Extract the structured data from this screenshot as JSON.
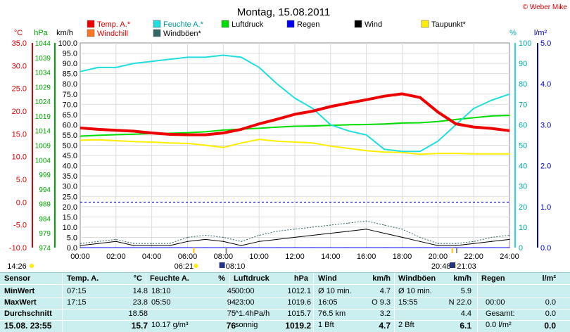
{
  "page": {
    "title": "Montag, 15.08.2011",
    "copyright": "© Weber Mike",
    "colors": {
      "temp": "#ee0000",
      "windchill": "#ff7722",
      "humidity": "#22dddd",
      "pressure": "#00dd00",
      "rain": "#0000ee",
      "wind": "#000000",
      "dewpoint": "#ffee00",
      "gusts": "#336666",
      "table_bg": "#cbeeee"
    }
  },
  "axes": {
    "temp_unit": "°C",
    "pressure_unit": "hPa",
    "wind_unit": "km/h",
    "humidity_unit": "%",
    "rain_unit": "l/m²",
    "temp_ticks": [
      "35.0",
      "30.0",
      "25.0",
      "20.0",
      "15.0",
      "10.0",
      "5.0",
      "0.0",
      "-5.0",
      "-10.0"
    ],
    "pressure_ticks": [
      "1044",
      "1039",
      "1034",
      "1029",
      "1024",
      "1019",
      "1014",
      "1009",
      "1004",
      "999",
      "994",
      "989",
      "984",
      "979",
      "974"
    ],
    "wind_ticks": [
      "100.0",
      "95.0",
      "90.0",
      "85.0",
      "80.0",
      "75.0",
      "70.0",
      "65.0",
      "60.0",
      "55.0",
      "50.0",
      "45.0",
      "40.0",
      "35.0",
      "30.0",
      "25.0",
      "20.0",
      "15.0",
      "10.0",
      "5.0",
      "0.0"
    ],
    "humidity_ticks": [
      "100",
      "90",
      "80",
      "70",
      "60",
      "50",
      "40",
      "30",
      "20",
      "10",
      "0"
    ],
    "rain_ticks": [
      "5.0",
      "4.0",
      "3.0",
      "2.0",
      "1.0",
      "0.0"
    ],
    "x_ticks": [
      "00:00",
      "02:00",
      "04:00",
      "06:00",
      "08:00",
      "10:00",
      "12:00",
      "14:00",
      "16:00",
      "18:00",
      "20:00",
      "22:00",
      "24:00"
    ]
  },
  "sun": {
    "sunrise": "06:21",
    "sunset": "20:48",
    "moonrise": "08:10",
    "moonset": "21:03",
    "left_time": "14:26"
  },
  "chart_data": {
    "type": "line",
    "x": [
      "00:00",
      "01:00",
      "02:00",
      "03:00",
      "04:00",
      "05:00",
      "06:00",
      "07:00",
      "08:00",
      "09:00",
      "10:00",
      "11:00",
      "12:00",
      "13:00",
      "14:00",
      "15:00",
      "16:00",
      "17:00",
      "18:00",
      "19:00",
      "20:00",
      "21:00",
      "22:00",
      "23:00",
      "24:00"
    ],
    "series": [
      {
        "name": "Temp. A.*",
        "color": "#ee0000",
        "axis": "temp",
        "values": [
          16.3,
          16.0,
          15.8,
          15.6,
          15.2,
          14.9,
          14.8,
          14.8,
          15.2,
          16.0,
          17.2,
          18.2,
          19.3,
          20.0,
          21.0,
          21.8,
          22.5,
          23.3,
          23.8,
          23.0,
          19.8,
          17.2,
          16.5,
          16.2,
          15.7
        ]
      },
      {
        "name": "Windchill",
        "color": "#ff7722",
        "axis": "temp",
        "values": [
          16.3,
          16.0,
          15.8,
          15.6,
          15.2,
          14.9,
          14.8,
          14.8,
          15.2,
          16.0,
          17.2,
          18.2,
          19.3,
          20.0,
          21.0,
          21.8,
          22.5,
          23.3,
          23.8,
          23.0,
          19.8,
          17.2,
          16.5,
          16.2,
          15.7
        ]
      },
      {
        "name": "Feuchte A.*",
        "color": "#22dddd",
        "axis": "humidity",
        "values": [
          86,
          88,
          88,
          90,
          91,
          92,
          93,
          93,
          94,
          93,
          88,
          80,
          73,
          68,
          60,
          57,
          55,
          48,
          47,
          47,
          52,
          60,
          68,
          72,
          75
        ]
      },
      {
        "name": "Luftdruck",
        "color": "#00dd00",
        "axis": "pressure",
        "values": [
          1012.1,
          1012.4,
          1012.6,
          1012.8,
          1013.0,
          1013.1,
          1013.3,
          1013.6,
          1014.2,
          1014.5,
          1014.8,
          1015.2,
          1015.5,
          1015.6,
          1015.8,
          1016.0,
          1016.1,
          1016.3,
          1016.6,
          1016.7,
          1017.1,
          1017.8,
          1018.4,
          1019.0,
          1019.2
        ]
      },
      {
        "name": "Regen",
        "color": "#0000ee",
        "axis": "rain",
        "values": [
          0,
          0,
          0,
          0,
          0,
          0,
          0,
          0,
          0,
          0,
          0,
          0,
          0,
          0,
          0,
          0,
          0,
          0,
          0,
          0,
          0,
          0,
          0,
          0,
          0
        ]
      },
      {
        "name": "Wind",
        "color": "#000000",
        "axis": "wind",
        "values": [
          1,
          2,
          3,
          1,
          1,
          1,
          3,
          4,
          3,
          1,
          3,
          4,
          5,
          6,
          7,
          8,
          9,
          7,
          5,
          3,
          1,
          1,
          2,
          3,
          4
        ]
      },
      {
        "name": "Taupunkt*",
        "color": "#ffee00",
        "axis": "temp",
        "values": [
          13.6,
          13.7,
          13.5,
          13.3,
          13.2,
          13.0,
          12.9,
          12.5,
          12.0,
          13.0,
          13.8,
          13.4,
          13.2,
          13.0,
          12.3,
          11.8,
          11.3,
          11.0,
          10.9,
          10.5,
          10.7,
          10.7,
          10.6,
          10.6,
          10.6
        ]
      },
      {
        "name": "Windböen*",
        "color": "#336666",
        "axis": "wind",
        "values": [
          2,
          3,
          4,
          2,
          2,
          2,
          5,
          6,
          5,
          3,
          6,
          8,
          9,
          10,
          11,
          12,
          13,
          11,
          9,
          5,
          2,
          2,
          3,
          5,
          6
        ]
      }
    ],
    "rain_limit_line": 1.0,
    "axes_ranges": {
      "temp": [
        -10,
        35
      ],
      "pressure": [
        974,
        1044
      ],
      "wind": [
        0,
        100
      ],
      "humidity": [
        0,
        100
      ],
      "rain": [
        0,
        5
      ]
    },
    "grid": true,
    "legend": "top"
  },
  "table": {
    "headers": {
      "sensor": "Sensor",
      "temp": "Temp. A.",
      "temp_unit": "°C",
      "hum": "Feuchte A.",
      "hum_unit": "%",
      "press": "Luftdruck",
      "press_unit": "hPa",
      "wind": "Wind",
      "wind_unit": "km/h",
      "gust": "Windböen",
      "gust_unit": "km/h",
      "rain": "Regen",
      "rain_unit": "l/m²"
    },
    "rows": [
      {
        "label": "MinWert",
        "t_time": "07:15",
        "t_val": "14.8",
        "h_time": "18:10",
        "h_val": "45",
        "p_time": "00:00",
        "p_val": "1012.1",
        "w_label": "Ø 10 min.",
        "w_val": "4.7",
        "g_label": "Ø 10 min.",
        "g_val": "5.9",
        "r_label": "",
        "r_val": ""
      },
      {
        "label": "MaxWert",
        "t_time": "17:15",
        "t_val": "23.8",
        "h_time": "05:50",
        "h_val": "94",
        "p_time": "23:00",
        "p_val": "1019.6",
        "w_label": "16:05",
        "w_val": "O 9.3",
        "g_label": "15:55",
        "g_val": "N 22.0",
        "r_label": "00:00",
        "r_val": "0.0"
      },
      {
        "label": "Durchschnitt",
        "t_time": "",
        "t_val": "18.58",
        "h_time": "",
        "h_val": "75",
        "p_time": "^1.4hPa/h",
        "p_val": "1015.7",
        "w_label": "76.5 km",
        "w_val": "3.2",
        "g_label": "",
        "g_val": "4.4",
        "r_label": "Gesamt:",
        "r_val": "0.0"
      },
      {
        "label": "15.08. 23:55",
        "t_time": "",
        "t_val": "15.7",
        "h_time": "10.17 g/m³",
        "h_val": "76",
        "p_time": "sonnig",
        "p_val": "1019.2",
        "w_label": "1 Bft",
        "w_val": "4.7",
        "g_label": "2 Bft",
        "g_val": "6.1",
        "r_label": "0.0 l/m²",
        "r_val": "0.0"
      }
    ]
  }
}
